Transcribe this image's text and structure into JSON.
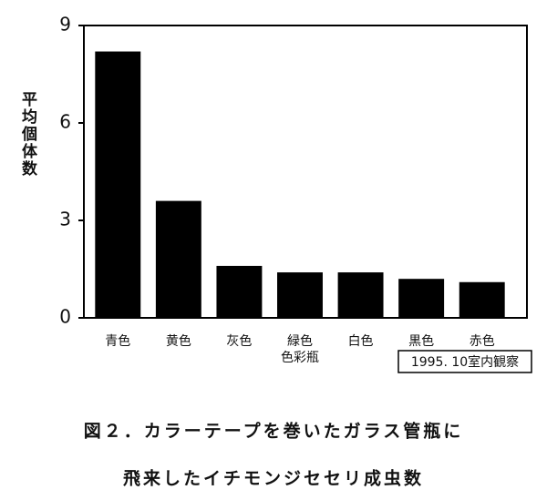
{
  "chart_data": {
    "type": "bar",
    "y_label": "平均個体数",
    "categories": [
      "青色",
      "黄色",
      "灰色",
      "緑色\n色彩瓶",
      "白色",
      "黒色",
      "赤色"
    ],
    "values": [
      8.2,
      3.6,
      1.6,
      1.4,
      1.4,
      1.2,
      1.1
    ],
    "color": "#000000",
    "ylim": [
      0,
      9
    ],
    "yticks": [
      0,
      3,
      6,
      9
    ],
    "annotation": "1995. 10室内観察",
    "caption": [
      "図２．カラーテープを巻いたガラス管瓶に",
      "飛来したイチモンジセセリ成虫数"
    ]
  }
}
